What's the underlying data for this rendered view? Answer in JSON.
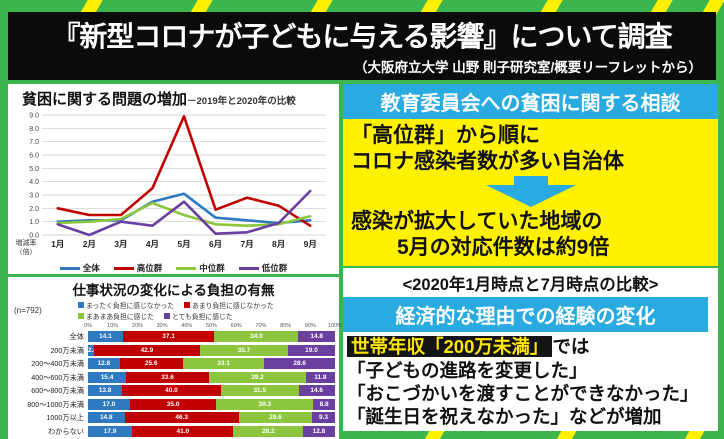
{
  "header": {
    "title": "『新型コロナが子どもに与える影響』について調査",
    "subtitle": "（大阪府立大学 山野 則子研究室/概要リーフレットから）"
  },
  "right": {
    "consult_header": "教育委員会への貧困に関する相談",
    "line1": "「高位群」から順に",
    "line2": "コロナ感染者数が多い自治体",
    "result1": "感染が拡大していた地域の",
    "result2": "5月の対応件数は約9倍",
    "comparison": "<2020年1月時点と7月時点の比較>",
    "econ_header": "経済的な理由での経験の変化",
    "highlight": "世帯年収「200万未満」",
    "highlight_suffix": "では",
    "item1": "「子どもの進路を変更した」",
    "item2": "「おこづかいを渡すことができなかった」",
    "item3": "「誕生日を祝えなかった」などが増加"
  },
  "colors": {
    "background_green": "#3cb54e",
    "stripe_yellow": "#fff100",
    "cyan_accent": "#29abe2",
    "series_blue": "#2e79c0",
    "series_red": "#c00000",
    "series_green": "#8cc63f",
    "series_purple": "#6b3fa0"
  },
  "chart_data": [
    {
      "type": "line",
      "title": "貧困に関する問題の増加",
      "subtitle": "－2019年と2020年の比較",
      "ylabel": "増減率（倍）",
      "x": [
        "1月",
        "2月",
        "3月",
        "4月",
        "5月",
        "6月",
        "7月",
        "8月",
        "9月"
      ],
      "ylim": [
        0,
        9
      ],
      "yticks": [
        "0.0",
        "1.0",
        "2.0",
        "3.0",
        "4.0",
        "5.0",
        "6.0",
        "7.0",
        "8.0",
        "9.0"
      ],
      "grid": true,
      "legend_position": "bottom",
      "series": [
        {
          "name": "全体",
          "color": "#2e79c0",
          "values": [
            1.0,
            1.1,
            1.1,
            2.5,
            3.1,
            1.3,
            1.1,
            0.9,
            1.1
          ]
        },
        {
          "name": "高位群",
          "color": "#c00000",
          "values": [
            2.0,
            1.5,
            1.5,
            3.5,
            8.9,
            1.9,
            2.8,
            2.2,
            0.7
          ]
        },
        {
          "name": "中位群",
          "color": "#8cc63f",
          "values": [
            0.9,
            1.0,
            1.2,
            2.4,
            1.5,
            0.8,
            0.7,
            0.8,
            1.4
          ]
        },
        {
          "name": "低位群",
          "color": "#6b3fa0",
          "values": [
            0.8,
            0.0,
            1.0,
            0.7,
            2.5,
            0.1,
            0.2,
            0.9,
            3.3
          ]
        }
      ]
    },
    {
      "type": "bar",
      "stacked": true,
      "horizontal": true,
      "title": "仕事状況の変化による負担の有無",
      "note": "(n=792)",
      "xlim": [
        0,
        100
      ],
      "xticks": [
        "0%",
        "10%",
        "20%",
        "30%",
        "40%",
        "50%",
        "60%",
        "70%",
        "80%",
        "90%",
        "100%"
      ],
      "categories": [
        "全体",
        "200万未満",
        "200～400万未満",
        "400～600万未満",
        "600～800万未満",
        "800～1000万未満",
        "1000万以上",
        "わからない"
      ],
      "series": [
        {
          "name": "まったく負担に感じなかった",
          "color": "#2e79c0",
          "values": [
            14.1,
            2.4,
            12.8,
            15.4,
            13.8,
            17.0,
            14.8,
            17.9
          ]
        },
        {
          "name": "あまり負担に感じなかった",
          "color": "#c00000",
          "values": [
            37.1,
            42.9,
            25.6,
            33.6,
            40.0,
            35.0,
            46.3,
            41.0
          ]
        },
        {
          "name": "まあまあ負担に感じた",
          "color": "#8cc63f",
          "values": [
            34.0,
            35.7,
            33.1,
            39.2,
            31.5,
            39.3,
            29.6,
            28.2
          ]
        },
        {
          "name": "とても負担に感じた",
          "color": "#6b3fa0",
          "values": [
            14.8,
            19.0,
            28.6,
            11.8,
            14.6,
            8.8,
            9.3,
            12.8
          ]
        }
      ]
    }
  ]
}
